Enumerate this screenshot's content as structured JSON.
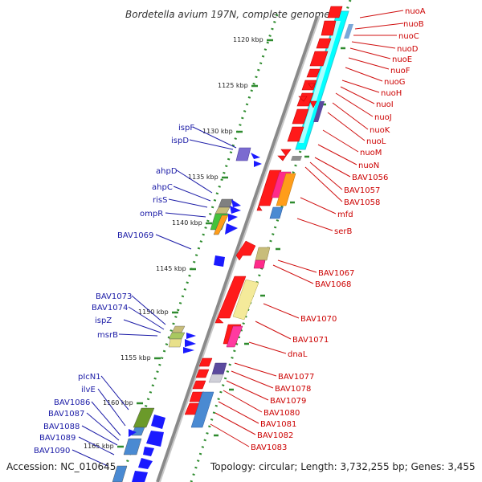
{
  "title": "Bordetella avium 197N, complete genome",
  "footer": {
    "accession": "Accession: NC_010645",
    "topology": "Topology: circular; Length: 3,732,255 bp; Genes: 3,455"
  },
  "colors": {
    "forward_gene": "#ff1a1a",
    "reverse_gene": "#1a1aff",
    "rrna": "#00ffff",
    "label_forward": "#cc0000",
    "label_reverse": "#1a1aa6",
    "scale_ticks": "#2e8b2e",
    "backbone": "#888888"
  },
  "scale_labels": [
    "1120 kbp",
    "1125 kbp",
    "1130 kbp",
    "1135 kbp",
    "1140 kbp",
    "1145 kbp",
    "1150 kbp",
    "1155 kbp",
    "1160 kbp",
    "1165 kbp"
  ],
  "right_labels": [
    "nuoA",
    "nuoB",
    "nuoC",
    "nuoD",
    "nuoE",
    "nuoF",
    "nuoG",
    "nuoH",
    "nuoI",
    "nuoJ",
    "nuoK",
    "nuoL",
    "nuoM",
    "nuoN",
    "BAV1056",
    "BAV1057",
    "BAV1058",
    "mfd",
    "serB",
    "BAV1067",
    "BAV1068",
    "BAV1070",
    "BAV1071",
    "dnaL",
    "BAV1077",
    "BAV1078",
    "BAV1079",
    "BAV1080",
    "BAV1081",
    "BAV1082",
    "BAV1083"
  ],
  "left_labels": [
    "ispF",
    "ispD",
    "ahpD",
    "ahpC",
    "risS",
    "ompR",
    "BAV1069",
    "BAV1073",
    "BAV1074",
    "ispZ",
    "msrB",
    "pIcN1",
    "ilvE",
    "BAV1086",
    "BAV1087",
    "BAV1088",
    "BAV1089",
    "BAV1090"
  ]
}
